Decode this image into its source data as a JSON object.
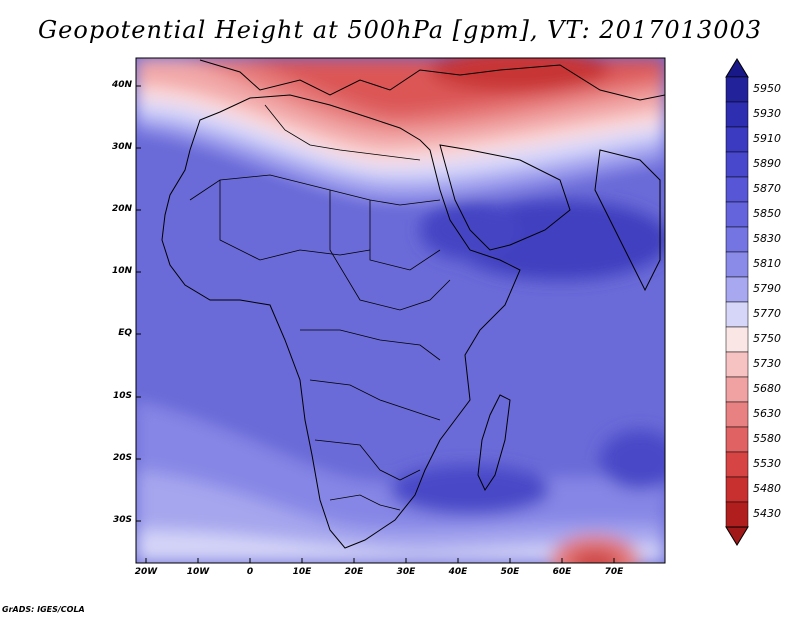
{
  "title": "Geopotential Height at 500hPa [gpm], VT: 2017013003",
  "credit": "GrADS: IGES/COLA",
  "lat_labels": [
    "40N",
    "30N",
    "20N",
    "10N",
    "EQ",
    "10S",
    "20S",
    "30S"
  ],
  "lon_labels": [
    "20W",
    "10W",
    "0",
    "10E",
    "20E",
    "30E",
    "40E",
    "50E",
    "60E",
    "70E"
  ],
  "colorbar": {
    "labels": [
      "5950",
      "5930",
      "5910",
      "5890",
      "5870",
      "5850",
      "5830",
      "5810",
      "5790",
      "5770",
      "5750",
      "5730",
      "5680",
      "5630",
      "5580",
      "5530",
      "5480",
      "5430"
    ],
    "colors": [
      "#22229a",
      "#2e2eb0",
      "#3b3bc2",
      "#4848cc",
      "#5656d6",
      "#6464dc",
      "#7474e2",
      "#8a8ae8",
      "#a8a8f0",
      "#d6d6f8",
      "#fbe6e6",
      "#f6c2c2",
      "#f0a2a2",
      "#e88282",
      "#e06262",
      "#d64444",
      "#c83030",
      "#b01e1e"
    ],
    "top_arrow_color": "#181888",
    "bottom_arrow_color": "#a01818"
  }
}
